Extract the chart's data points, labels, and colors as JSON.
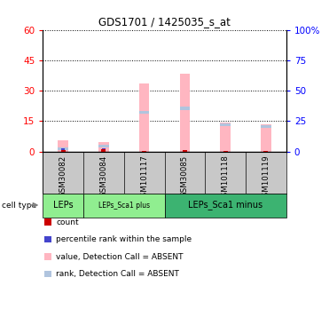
{
  "title": "GDS1701 / 1425035_s_at",
  "samples": [
    "GSM30082",
    "GSM30084",
    "GSM101117",
    "GSM30085",
    "GSM101118",
    "GSM101119"
  ],
  "cell_types": [
    {
      "label": "LEPs",
      "start": 0,
      "end": 1,
      "color": "#90EE90"
    },
    {
      "label": "LEPs_Sca1 plus",
      "start": 1,
      "end": 3,
      "color": "#90EE90"
    },
    {
      "label": "LEPs_Sca1 minus",
      "start": 3,
      "end": 6,
      "color": "#3CB371"
    }
  ],
  "value_absent": [
    5.5,
    4.5,
    33.5,
    38.5,
    14.5,
    13.5
  ],
  "rank_absent_bottom": [
    0.5,
    2.0,
    18.5,
    20.5,
    12.5,
    11.5
  ],
  "rank_absent_height": [
    1.5,
    1.5,
    1.5,
    1.5,
    1.5,
    1.5
  ],
  "count_red": [
    0.8,
    1.2,
    0.4,
    0.6,
    0.4,
    0.4
  ],
  "count_blue": [
    0.6,
    0.5,
    0.0,
    0.0,
    0.0,
    0.0
  ],
  "ylim_left": [
    0,
    60
  ],
  "ylim_right": [
    0,
    100
  ],
  "yticks_left": [
    0,
    15,
    30,
    45,
    60
  ],
  "yticks_right": [
    0,
    25,
    50,
    75,
    100
  ],
  "ytick_labels_left": [
    "0",
    "15",
    "30",
    "45",
    "60"
  ],
  "ytick_labels_right": [
    "0",
    "25",
    "50",
    "75",
    "100%"
  ],
  "bar_width": 0.25,
  "color_value_absent": "#FFB6C1",
  "color_rank_absent": "#B0C4DE",
  "color_count_red": "#CC0000",
  "color_count_blue": "#4444CC",
  "bg_color": "#FFFFFF",
  "label_area_color": "#C8C8C8",
  "legend_items": [
    {
      "label": "count",
      "color": "#CC0000"
    },
    {
      "label": "percentile rank within the sample",
      "color": "#4444CC"
    },
    {
      "label": "value, Detection Call = ABSENT",
      "color": "#FFB6C1"
    },
    {
      "label": "rank, Detection Call = ABSENT",
      "color": "#B0C4DE"
    }
  ]
}
